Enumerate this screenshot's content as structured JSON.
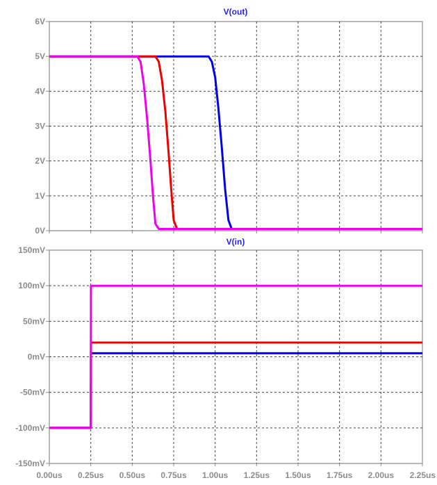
{
  "chart_data": [
    {
      "type": "line",
      "title": "V(out)",
      "title_color": "#1f1fff",
      "xlim": [
        0,
        2.25
      ],
      "x_unit": "us",
      "ylim": [
        0,
        6
      ],
      "yticks": [
        0,
        1,
        2,
        3,
        4,
        5,
        6
      ],
      "ytick_labels": [
        "0V",
        "1V",
        "2V",
        "3V",
        "4V",
        "5V",
        "6V"
      ],
      "grid": true,
      "series": [
        {
          "color": "#0000ee",
          "x": [
            0,
            0.96,
            0.98,
            1.0,
            1.02,
            1.04,
            1.06,
            1.08,
            1.1,
            2.25
          ],
          "y": [
            5,
            5,
            4.85,
            4.4,
            3.5,
            2.4,
            1.2,
            0.3,
            0.05,
            0.05
          ]
        },
        {
          "color": "#ee0000",
          "x": [
            0,
            0.64,
            0.66,
            0.68,
            0.7,
            0.72,
            0.735,
            0.75,
            0.77,
            2.25
          ],
          "y": [
            5,
            5,
            4.85,
            4.3,
            3.4,
            2.2,
            1.2,
            0.3,
            0.05,
            0.05
          ]
        },
        {
          "color": "#ee00ee",
          "x": [
            0,
            0.53,
            0.55,
            0.57,
            0.59,
            0.61,
            0.625,
            0.64,
            0.66,
            2.25
          ],
          "y": [
            5,
            5,
            4.85,
            4.2,
            3.2,
            2.0,
            1.0,
            0.2,
            0.05,
            0.05
          ]
        }
      ]
    },
    {
      "type": "line",
      "title": "V(in)",
      "title_color": "#1f1fff",
      "xlim": [
        0,
        2.25
      ],
      "x_unit": "us",
      "ylim": [
        -150,
        150
      ],
      "y_unit": "mV",
      "yticks": [
        -150,
        -100,
        -50,
        0,
        50,
        100,
        150
      ],
      "ytick_labels": [
        "-150mV",
        "-100mV",
        "-50mV",
        "0mV",
        "50mV",
        "100mV",
        "150mV"
      ],
      "xticks": [
        0,
        0.25,
        0.5,
        0.75,
        1.0,
        1.25,
        1.5,
        1.75,
        2.0,
        2.25
      ],
      "xtick_labels": [
        "0.00us",
        "0.25us",
        "0.50us",
        "0.75us",
        "1.00us",
        "1.25us",
        "1.50us",
        "1.75us",
        "2.00us",
        "2.25us"
      ],
      "grid": true,
      "series": [
        {
          "color": "#0000ee",
          "x": [
            0,
            0.25,
            0.251,
            2.25
          ],
          "y": [
            -100,
            -100,
            5,
            5
          ]
        },
        {
          "color": "#ee0000",
          "x": [
            0,
            0.25,
            0.251,
            2.25
          ],
          "y": [
            -100,
            -100,
            20,
            20
          ]
        },
        {
          "color": "#ee00ee",
          "x": [
            0,
            0.25,
            0.251,
            2.25
          ],
          "y": [
            -100,
            -100,
            100,
            100
          ]
        }
      ]
    }
  ]
}
